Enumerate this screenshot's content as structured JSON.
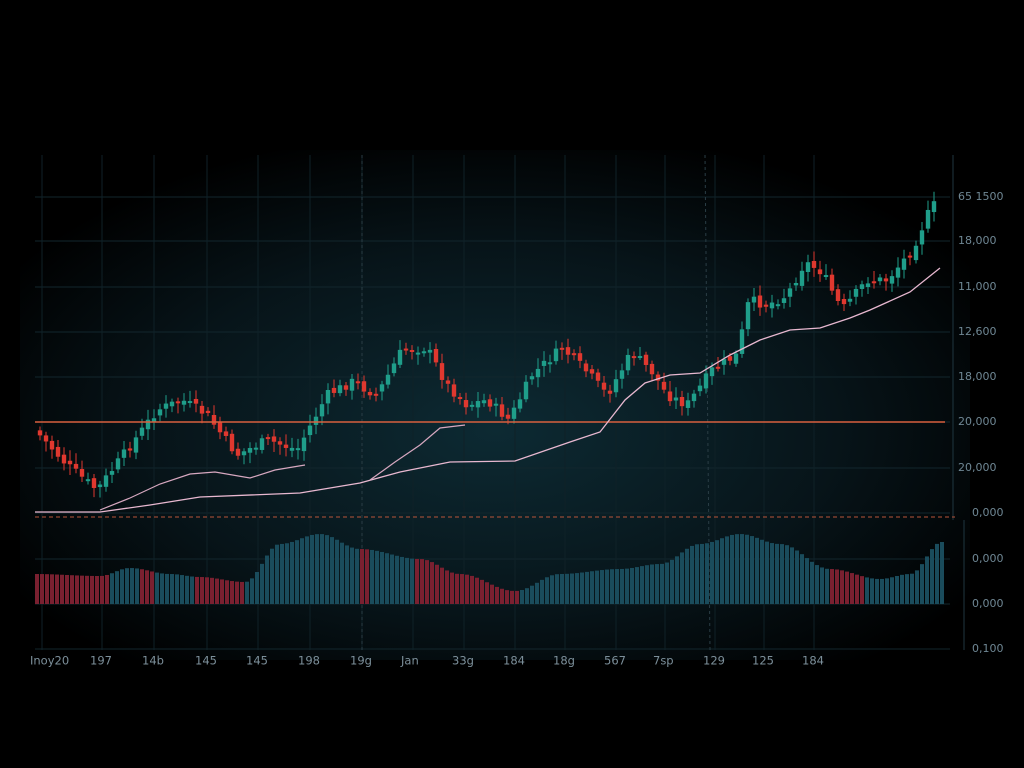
{
  "price_axis": {
    "labels": [
      "65 1500",
      "18,000",
      "11,000",
      "12,600",
      "18,000",
      "20,000",
      "20,000",
      "0,000",
      "0,000",
      "0,000",
      "0,100"
    ]
  },
  "time_axis": {
    "labels": [
      "Inoy20",
      "197",
      "14b",
      "145",
      "145",
      "198",
      "19g",
      "Jan",
      "33g",
      "184",
      "18g",
      "567",
      "7sp",
      "129",
      "125",
      "184"
    ]
  }
}
